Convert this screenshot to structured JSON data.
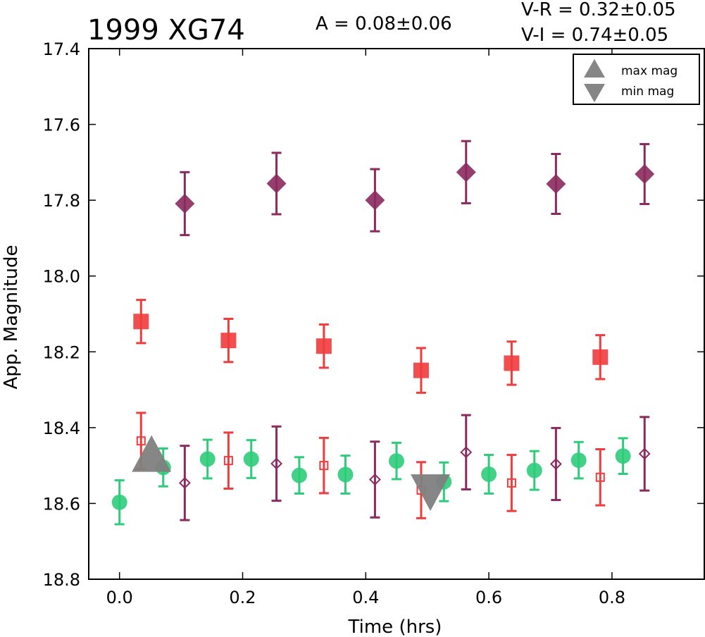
{
  "chart_data": {
    "type": "scatter",
    "title": "1999 XG74",
    "annotations": {
      "amplitude": "A  = 0.08±0.06",
      "v_r": "V-R = 0.32±0.05",
      "v_i": "V-I  = 0.74±0.05"
    },
    "xlabel": "Time (hrs)",
    "ylabel": "App. Magnitude",
    "xlim": [
      -0.05,
      0.95
    ],
    "ylim": [
      17.4,
      18.8
    ],
    "y_inverted": true,
    "x_ticks": [
      0.0,
      0.2,
      0.4,
      0.6,
      0.8
    ],
    "x_tick_labels": [
      "0.0",
      "0.2",
      "0.4",
      "0.6",
      "0.8"
    ],
    "y_ticks": [
      17.4,
      17.6,
      17.8,
      18.0,
      18.2,
      18.4,
      18.6,
      18.8
    ],
    "y_tick_labels": [
      "17.4",
      "17.6",
      "17.8",
      "18.0",
      "18.2",
      "18.4",
      "18.6",
      "18.8"
    ],
    "grid": false,
    "legend": {
      "placement": "top-right",
      "entries": [
        {
          "label": "max mag",
          "marker": "triangle-up",
          "color": "#808080"
        },
        {
          "label": "min mag",
          "marker": "triangle-down",
          "color": "#808080"
        }
      ]
    },
    "series": [
      {
        "marker": "circle",
        "color": "#2ecc7a",
        "filled": true,
        "points": [
          {
            "x": 0.0,
            "y": 18.597,
            "err": 0.058
          },
          {
            "x": 0.071,
            "y": 18.505,
            "err": 0.05
          },
          {
            "x": 0.143,
            "y": 18.483,
            "err": 0.051
          },
          {
            "x": 0.214,
            "y": 18.483,
            "err": 0.05
          },
          {
            "x": 0.292,
            "y": 18.526,
            "err": 0.048
          },
          {
            "x": 0.367,
            "y": 18.524,
            "err": 0.05
          },
          {
            "x": 0.45,
            "y": 18.488,
            "err": 0.048
          },
          {
            "x": 0.527,
            "y": 18.543,
            "err": 0.051
          },
          {
            "x": 0.6,
            "y": 18.523,
            "err": 0.051
          },
          {
            "x": 0.674,
            "y": 18.513,
            "err": 0.051
          },
          {
            "x": 0.746,
            "y": 18.486,
            "err": 0.048
          },
          {
            "x": 0.818,
            "y": 18.475,
            "err": 0.047
          }
        ]
      },
      {
        "marker": "square",
        "color": "#f03c3c",
        "filled": true,
        "points": [
          {
            "x": 0.035,
            "y": 18.12,
            "err": 0.057
          },
          {
            "x": 0.177,
            "y": 18.17,
            "err": 0.057
          },
          {
            "x": 0.332,
            "y": 18.185,
            "err": 0.057
          },
          {
            "x": 0.49,
            "y": 18.249,
            "err": 0.059
          },
          {
            "x": 0.637,
            "y": 18.23,
            "err": 0.057
          },
          {
            "x": 0.781,
            "y": 18.214,
            "err": 0.058
          }
        ]
      },
      {
        "marker": "square",
        "color": "#f03c3c",
        "filled": false,
        "points": [
          {
            "x": 0.035,
            "y": 18.435,
            "err": 0.074
          },
          {
            "x": 0.177,
            "y": 18.487,
            "err": 0.074
          },
          {
            "x": 0.332,
            "y": 18.5,
            "err": 0.073
          },
          {
            "x": 0.49,
            "y": 18.565,
            "err": 0.074
          },
          {
            "x": 0.637,
            "y": 18.546,
            "err": 0.074
          },
          {
            "x": 0.781,
            "y": 18.531,
            "err": 0.074
          }
        ]
      },
      {
        "marker": "diamond",
        "color": "#8b2a5e",
        "filled": true,
        "points": [
          {
            "x": 0.106,
            "y": 17.809,
            "err": 0.083
          },
          {
            "x": 0.255,
            "y": 17.756,
            "err": 0.081
          },
          {
            "x": 0.415,
            "y": 17.8,
            "err": 0.082
          },
          {
            "x": 0.563,
            "y": 17.726,
            "err": 0.082
          },
          {
            "x": 0.709,
            "y": 17.757,
            "err": 0.079
          },
          {
            "x": 0.853,
            "y": 17.731,
            "err": 0.079
          }
        ]
      },
      {
        "marker": "diamond",
        "color": "#8b2a5e",
        "filled": false,
        "points": [
          {
            "x": 0.106,
            "y": 18.546,
            "err": 0.098
          },
          {
            "x": 0.255,
            "y": 18.495,
            "err": 0.098
          },
          {
            "x": 0.415,
            "y": 18.537,
            "err": 0.1
          },
          {
            "x": 0.563,
            "y": 18.465,
            "err": 0.098
          },
          {
            "x": 0.709,
            "y": 18.496,
            "err": 0.095
          },
          {
            "x": 0.853,
            "y": 18.469,
            "err": 0.097
          }
        ]
      }
    ],
    "extrema": [
      {
        "type": "max",
        "marker": "triangle-up",
        "color": "#808080",
        "x": 0.052,
        "y": 18.48
      },
      {
        "type": "min",
        "marker": "triangle-down",
        "color": "#808080",
        "x": 0.505,
        "y": 18.56
      }
    ]
  }
}
